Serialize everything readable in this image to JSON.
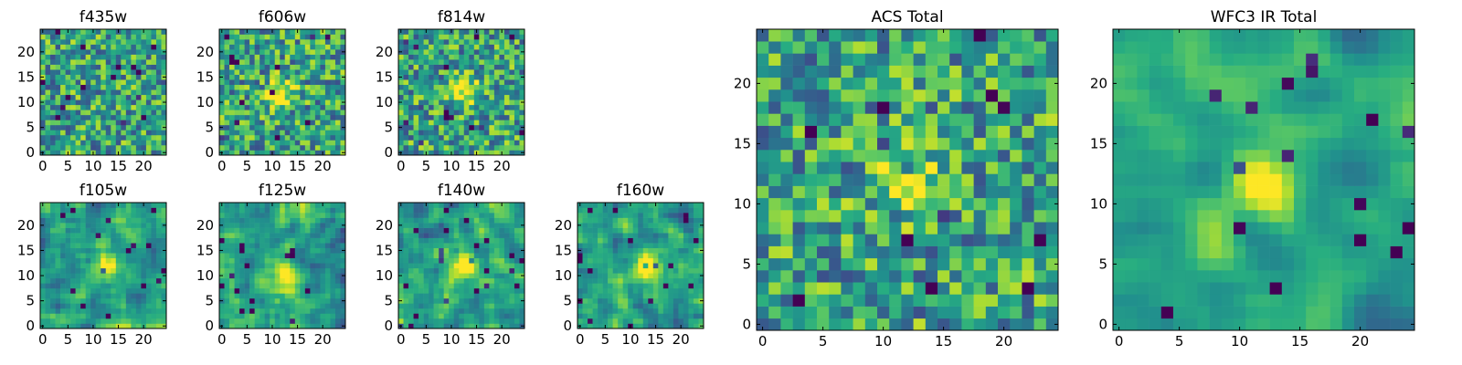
{
  "chart_data": {
    "type": "heatmap",
    "colormap": "viridis",
    "panels": [
      {
        "id": "f435w",
        "title": "f435w",
        "grid_size": 25,
        "source_peak": null,
        "noise": "high",
        "xticks": [
          0,
          5,
          10,
          15,
          20
        ],
        "yticks": [
          0,
          5,
          10,
          15,
          20
        ],
        "xlim": [
          0,
          24
        ],
        "ylim": [
          0,
          24
        ]
      },
      {
        "id": "f606w",
        "title": "f606w",
        "grid_size": 25,
        "source_peak": [
          12,
          12
        ],
        "noise": "high",
        "xticks": [
          0,
          5,
          10,
          15,
          20
        ],
        "yticks": [
          0,
          5,
          10,
          15,
          20
        ],
        "xlim": [
          0,
          24
        ],
        "ylim": [
          0,
          24
        ]
      },
      {
        "id": "f814w",
        "title": "f814w",
        "grid_size": 25,
        "source_peak": [
          13,
          12
        ],
        "noise": "high",
        "xticks": [
          0,
          5,
          10,
          15,
          20
        ],
        "yticks": [
          0,
          5,
          10,
          15,
          20
        ],
        "xlim": [
          0,
          24
        ],
        "ylim": [
          0,
          24
        ]
      },
      {
        "id": "f105w",
        "title": "f105w",
        "grid_size": 25,
        "source_peak": [
          13,
          12
        ],
        "noise": "medium",
        "xticks": [
          0,
          5,
          10,
          15,
          20
        ],
        "yticks": [
          0,
          5,
          10,
          15,
          20
        ],
        "xlim": [
          0,
          24
        ],
        "ylim": [
          0,
          24
        ]
      },
      {
        "id": "f125w",
        "title": "f125w",
        "grid_size": 25,
        "source_peak": [
          12,
          11
        ],
        "noise": "medium",
        "xticks": [
          0,
          5,
          10,
          15,
          20
        ],
        "yticks": [
          0,
          5,
          10,
          15,
          20
        ],
        "xlim": [
          0,
          24
        ],
        "ylim": [
          0,
          24
        ]
      },
      {
        "id": "f140w",
        "title": "f140w",
        "grid_size": 25,
        "source_peak": [
          13,
          12
        ],
        "noise": "medium",
        "xticks": [
          0,
          5,
          10,
          15,
          20
        ],
        "yticks": [
          0,
          5,
          10,
          15,
          20
        ],
        "xlim": [
          0,
          24
        ],
        "ylim": [
          0,
          24
        ]
      },
      {
        "id": "f160w",
        "title": "f160w",
        "grid_size": 25,
        "source_peak": [
          13,
          12
        ],
        "noise": "medium",
        "xticks": [
          0,
          5,
          10,
          15,
          20
        ],
        "yticks": [
          0,
          5,
          10,
          15,
          20
        ],
        "xlim": [
          0,
          24
        ],
        "ylim": [
          0,
          24
        ]
      },
      {
        "id": "acs_total",
        "title": "ACS Total",
        "grid_size": 25,
        "source_peak": [
          12,
          12
        ],
        "noise": "high",
        "xticks": [
          0,
          5,
          10,
          15,
          20
        ],
        "yticks": [
          0,
          5,
          10,
          15,
          20
        ],
        "xlim": [
          0,
          24
        ],
        "ylim": [
          0,
          24
        ]
      },
      {
        "id": "wfc3_ir_total",
        "title": "WFC3 IR Total",
        "grid_size": 25,
        "source_peak": [
          12,
          12
        ],
        "noise": "low",
        "xticks": [
          0,
          5,
          10,
          15,
          20
        ],
        "yticks": [
          0,
          5,
          10,
          15,
          20
        ],
        "xlim": [
          0,
          24
        ],
        "ylim": [
          0,
          24
        ]
      }
    ]
  }
}
